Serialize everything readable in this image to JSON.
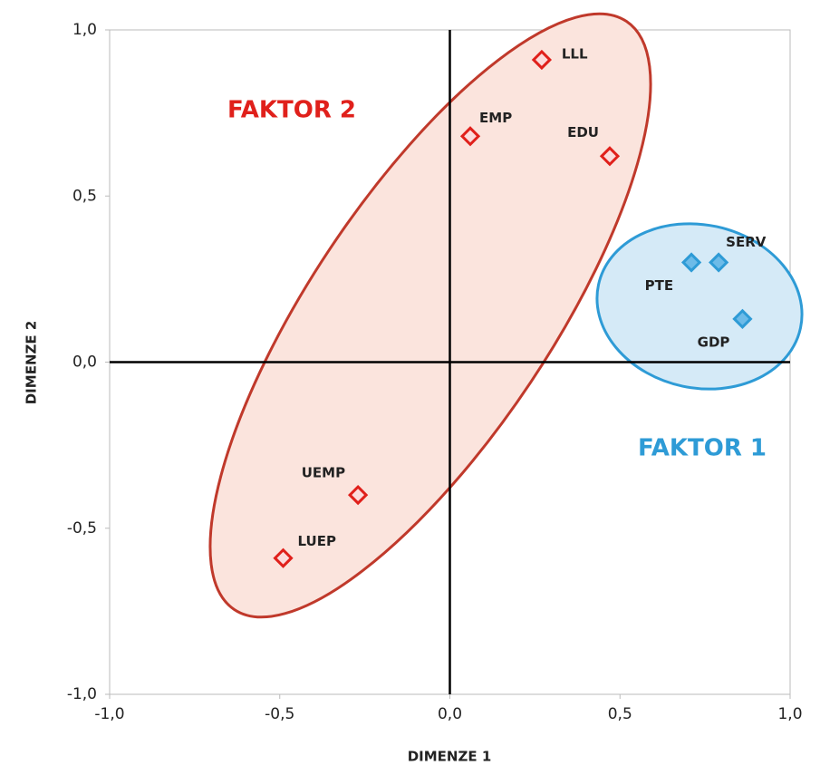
{
  "chart_data": {
    "type": "scatter",
    "xlabel": "DIMENZE 1",
    "ylabel": "DIMENZE 2",
    "xlim": [
      -1,
      1
    ],
    "ylim": [
      -1,
      1
    ],
    "xticks": [
      {
        "value": -1,
        "label": "-1,0"
      },
      {
        "value": -0.5,
        "label": "-0,5"
      },
      {
        "value": 0,
        "label": "0,0"
      },
      {
        "value": 0.5,
        "label": "0,5"
      },
      {
        "value": 1,
        "label": "1,0"
      }
    ],
    "yticks": [
      {
        "value": -1,
        "label": "-1,0"
      },
      {
        "value": -0.5,
        "label": "-0,5"
      },
      {
        "value": 0,
        "label": "0,0"
      },
      {
        "value": 0.5,
        "label": "0,5"
      },
      {
        "value": 1,
        "label": "1,0"
      }
    ],
    "series": [
      {
        "name": "FAKTOR 2",
        "color": "#e0201b",
        "fill": "#fcdcdc",
        "labels": [
          "LLL",
          "EMP",
          "EDU",
          "UEMP",
          "LUEP"
        ],
        "x": [
          0.27,
          0.06,
          0.47,
          -0.27,
          -0.49
        ],
        "values": [
          0.91,
          0.68,
          0.62,
          -0.4,
          -0.59
        ]
      },
      {
        "name": "FAKTOR 1",
        "color": "#2e9bd6",
        "fill": "#6dbbe8",
        "labels": [
          "PTE",
          "SERV",
          "GDP"
        ],
        "x": [
          0.71,
          0.79,
          0.86
        ],
        "values": [
          0.3,
          0.3,
          0.13
        ]
      }
    ]
  }
}
